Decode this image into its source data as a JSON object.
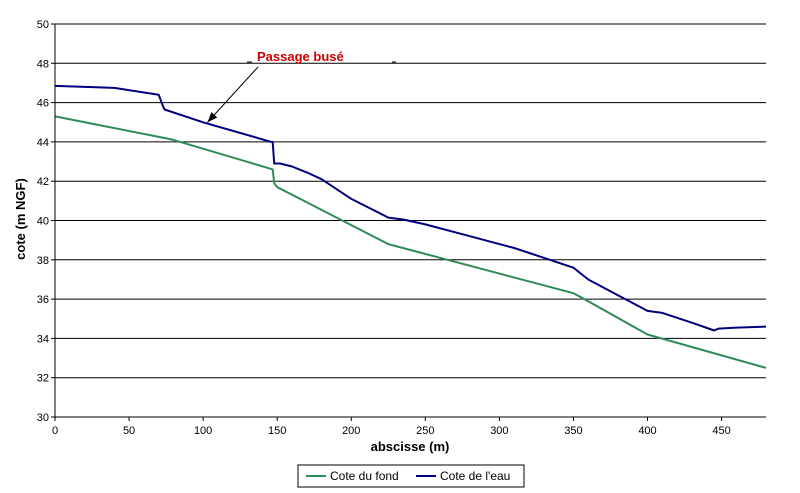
{
  "chart_data": {
    "type": "line",
    "title": "",
    "xlabel": "abscisse (m)",
    "ylabel": "cote (m NGF)",
    "xlim": [
      0,
      480
    ],
    "ylim": [
      30,
      50
    ],
    "xticks": [
      0,
      50,
      100,
      150,
      200,
      250,
      300,
      350,
      400,
      450
    ],
    "yticks": [
      30,
      32,
      34,
      36,
      38,
      40,
      42,
      44,
      46,
      48,
      50
    ],
    "grid": "horizontal",
    "legend_position": "bottom",
    "series": [
      {
        "name": "Cote du fond",
        "color": "#2e8b57",
        "x": [
          0,
          74,
          80,
          147,
          148,
          150,
          225,
          350,
          355,
          400,
          480
        ],
        "y": [
          45.3,
          44.2,
          44.1,
          42.6,
          41.9,
          41.7,
          38.8,
          36.3,
          36.1,
          34.2,
          32.5
        ]
      },
      {
        "name": "Cote de l'eau",
        "color": "#000080",
        "x": [
          0,
          40,
          70,
          73,
          74,
          100,
          146,
          147,
          148,
          152,
          160,
          170,
          180,
          200,
          225,
          235,
          250,
          280,
          310,
          330,
          350,
          360,
          380,
          400,
          410,
          430,
          445,
          448,
          460,
          480
        ],
        "y": [
          46.85,
          46.75,
          46.4,
          45.8,
          45.65,
          45.0,
          44.0,
          44.0,
          42.9,
          42.9,
          42.75,
          42.45,
          42.1,
          41.1,
          40.15,
          40.05,
          39.8,
          39.2,
          38.6,
          38.1,
          37.6,
          37.0,
          36.2,
          35.4,
          35.3,
          34.8,
          34.4,
          34.5,
          34.55,
          34.6
        ]
      }
    ],
    "annotations": [
      {
        "text": "Passage busé",
        "color": "#cc0000",
        "arrow_to": {
          "x": 103,
          "y": 45.0
        }
      }
    ]
  }
}
